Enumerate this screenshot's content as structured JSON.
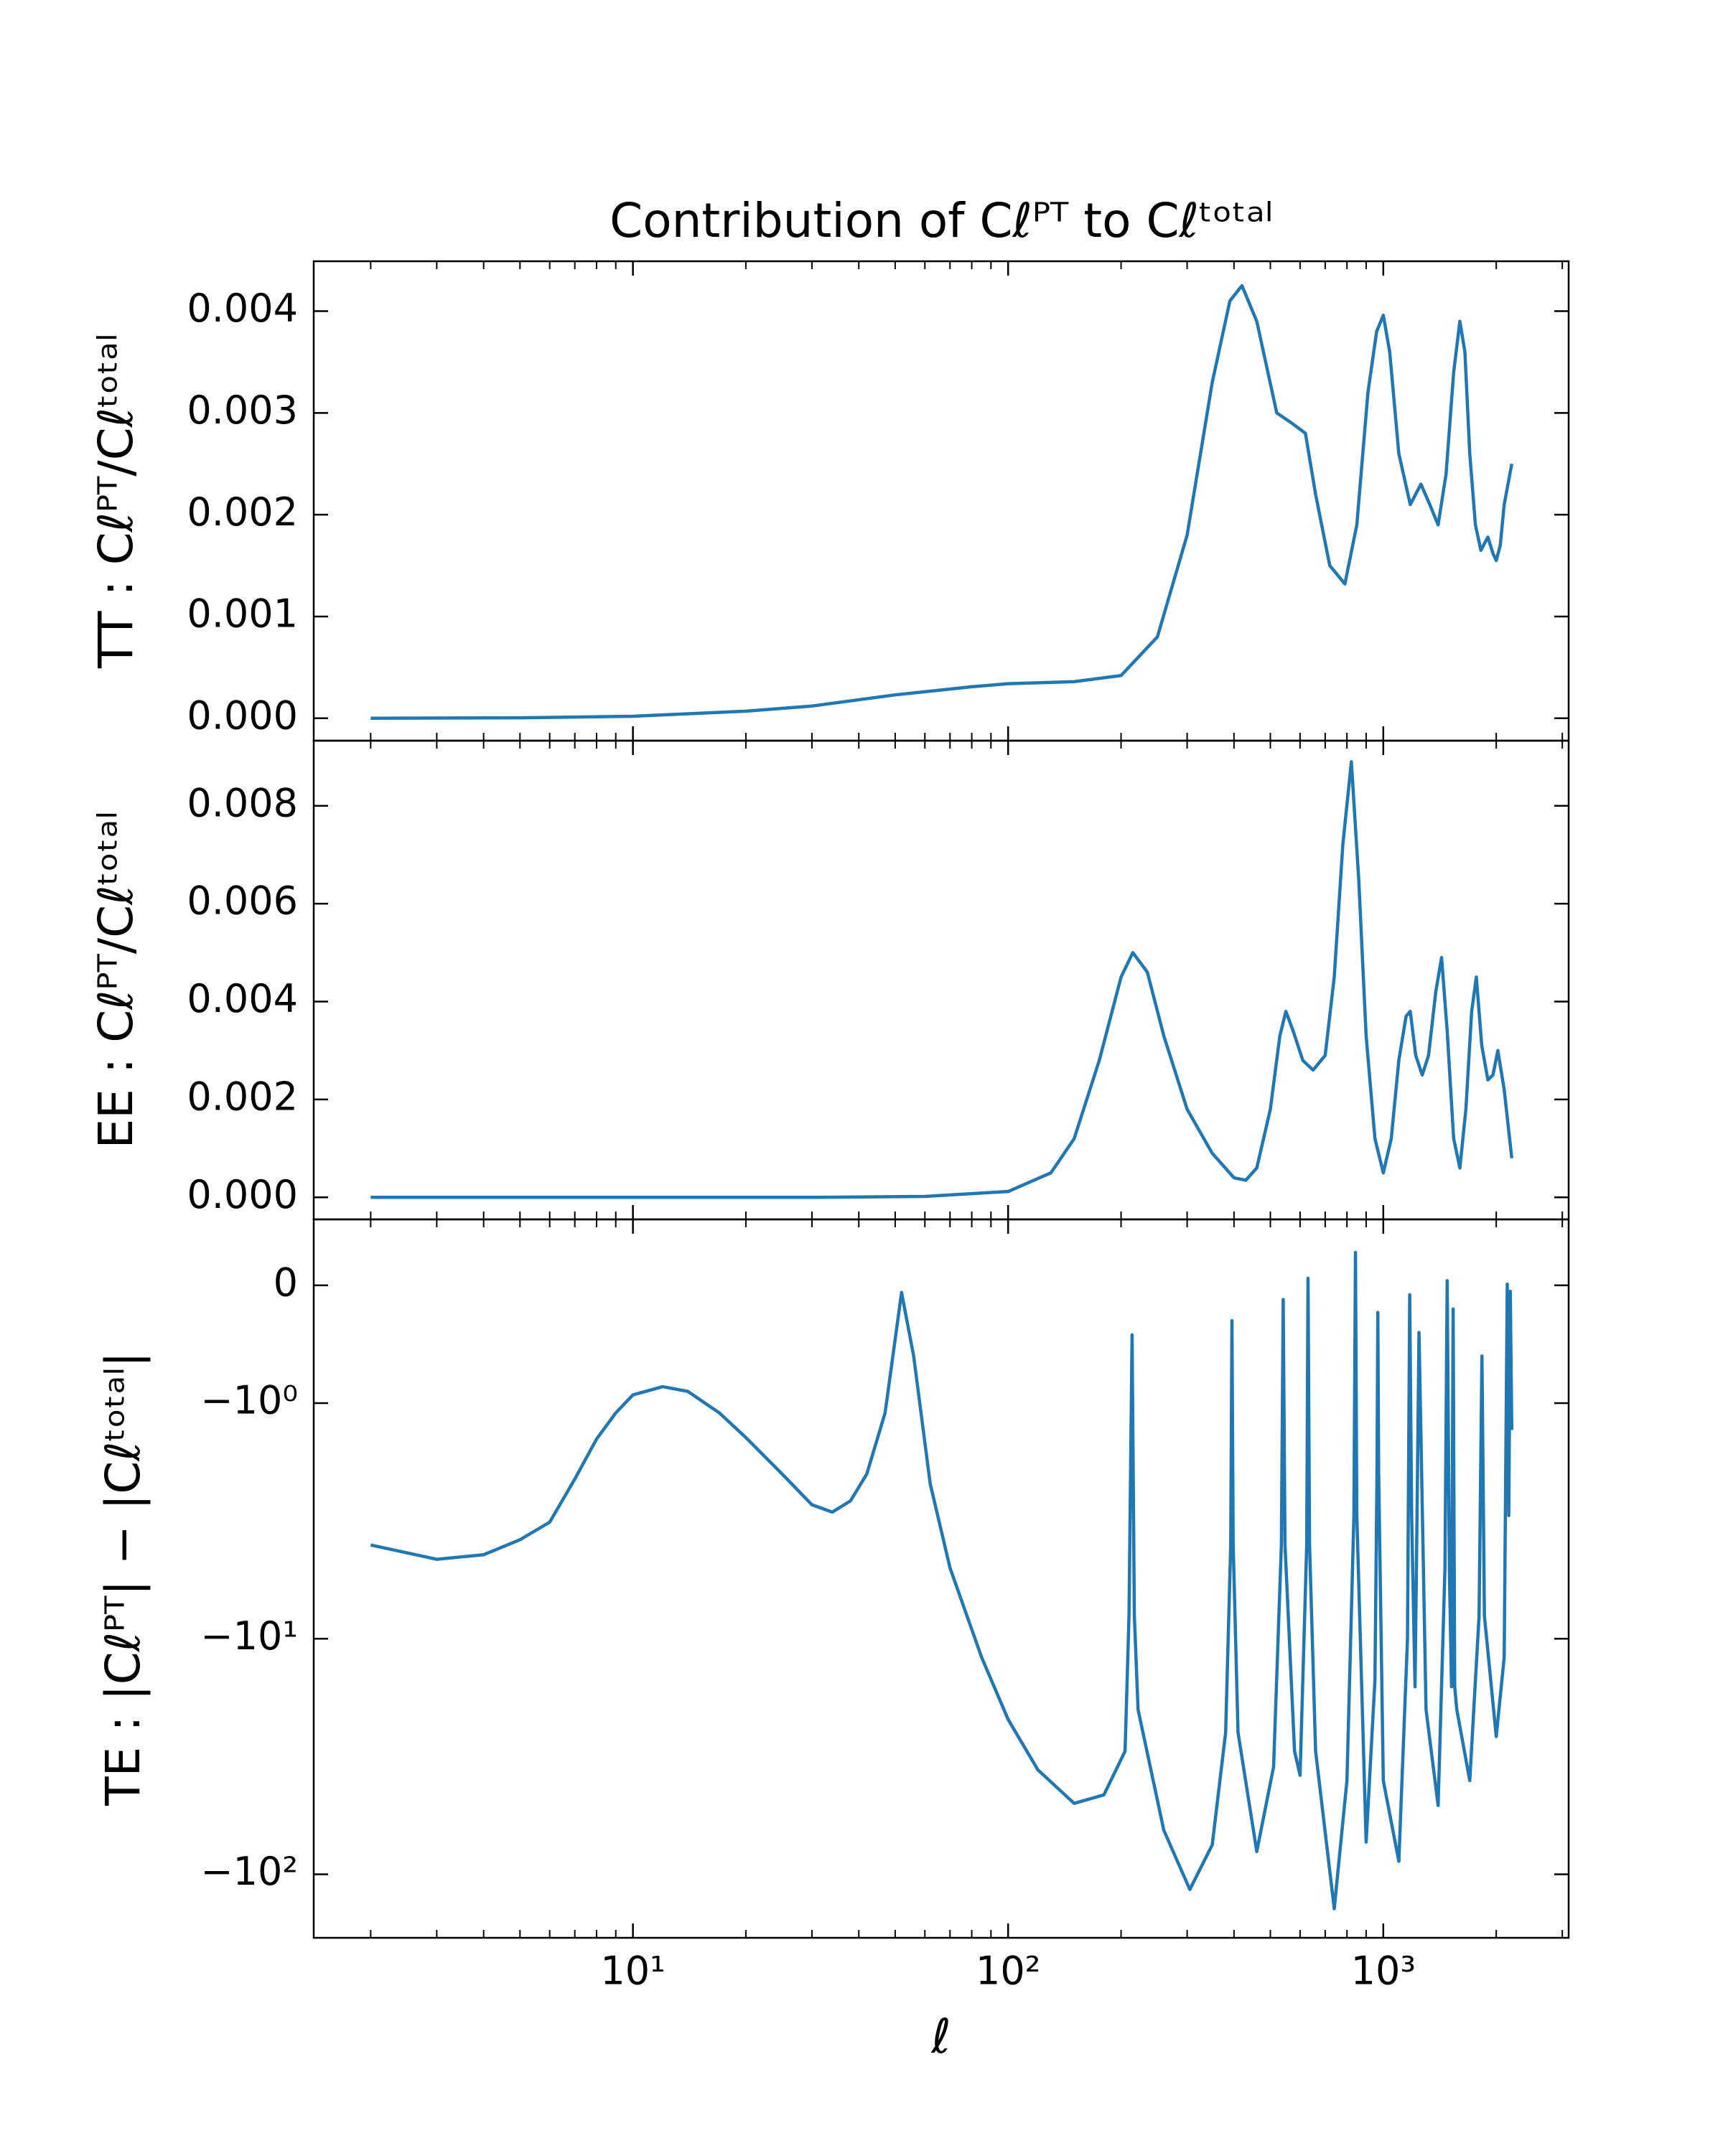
{
  "chart_data": [
    {
      "type": "line",
      "title": "Contribution of Cℓᴾᵀ to Cℓᵗᵒᵗᵃˡ",
      "ylabel": "TT : Cℓᴾᵀ/Cℓᵗᵒᵗᵃˡ",
      "xscale": "log",
      "xlim": [
        1.41,
        3119
      ],
      "xticks": [
        10,
        100,
        1000
      ],
      "ylim": [
        -0.00022,
        0.00449
      ],
      "yticks": [
        {
          "value": 0,
          "label": "0.000"
        },
        {
          "value": 0.001,
          "label": "0.001"
        },
        {
          "value": 0.002,
          "label": "0.002"
        },
        {
          "value": 0.003,
          "label": "0.003"
        },
        {
          "value": 0.004,
          "label": "0.004"
        }
      ],
      "color": "#1f77b4",
      "x": [
        2,
        5,
        10,
        20,
        30,
        50,
        80,
        100,
        150,
        200,
        250,
        300,
        350,
        390,
        420,
        460,
        520,
        570,
        620,
        660,
        720,
        790,
        850,
        910,
        960,
        1000,
        1040,
        1100,
        1180,
        1260,
        1330,
        1400,
        1470,
        1540,
        1600,
        1650,
        1700,
        1760,
        1820,
        1900,
        1960,
        2000,
        2050,
        2100,
        2200
      ],
      "values": [
        0.0,
        5e-06,
        2e-05,
        7e-05,
        0.00012,
        0.00023,
        0.00031,
        0.00034,
        0.00036,
        0.00042,
        0.0008,
        0.0018,
        0.0033,
        0.0041,
        0.00425,
        0.0039,
        0.003,
        0.0029,
        0.0028,
        0.0022,
        0.0015,
        0.00132,
        0.0019,
        0.0032,
        0.0038,
        0.00396,
        0.0036,
        0.0026,
        0.0021,
        0.0023,
        0.0021,
        0.0019,
        0.0024,
        0.0034,
        0.0039,
        0.0036,
        0.0026,
        0.0019,
        0.00165,
        0.00178,
        0.00162,
        0.00155,
        0.0017,
        0.0021,
        0.0025
      ]
    },
    {
      "type": "line",
      "ylabel": "EE : Cℓᴾᵀ/Cℓᵗᵒᵗᵃˡ",
      "xscale": "log",
      "xlim": [
        1.41,
        3119
      ],
      "xticks": [
        10,
        100,
        1000
      ],
      "ylim": [
        -0.00045,
        0.00933
      ],
      "yticks": [
        {
          "value": 0,
          "label": "0.000"
        },
        {
          "value": 0.002,
          "label": "0.002"
        },
        {
          "value": 0.004,
          "label": "0.004"
        },
        {
          "value": 0.006,
          "label": "0.006"
        },
        {
          "value": 0.008,
          "label": "0.008"
        }
      ],
      "color": "#1f77b4",
      "x": [
        2,
        10,
        30,
        60,
        100,
        130,
        150,
        175,
        200,
        215,
        235,
        260,
        300,
        350,
        400,
        430,
        460,
        500,
        530,
        550,
        575,
        610,
        650,
        700,
        740,
        780,
        822,
        860,
        900,
        950,
        1000,
        1050,
        1100,
        1150,
        1180,
        1220,
        1270,
        1320,
        1380,
        1430,
        1480,
        1540,
        1600,
        1660,
        1720,
        1770,
        1830,
        1900,
        1960,
        2020,
        2100,
        2200
      ],
      "values": [
        0.0,
        0.0,
        0.0,
        2e-05,
        0.00012,
        0.0005,
        0.0012,
        0.0028,
        0.0045,
        0.005,
        0.0046,
        0.0033,
        0.0018,
        0.0009,
        0.0004,
        0.00035,
        0.0006,
        0.0018,
        0.0033,
        0.0038,
        0.0034,
        0.0028,
        0.0026,
        0.0029,
        0.0045,
        0.0072,
        0.0089,
        0.0065,
        0.0033,
        0.0012,
        0.0005,
        0.0012,
        0.0028,
        0.0037,
        0.0038,
        0.0029,
        0.0025,
        0.0029,
        0.0042,
        0.0049,
        0.0034,
        0.0012,
        0.0006,
        0.0018,
        0.0038,
        0.0045,
        0.0031,
        0.0024,
        0.0025,
        0.003,
        0.0022,
        0.0008
      ]
    },
    {
      "type": "line",
      "ylabel": "TE : |Cℓᴾᵀ| − |Cℓᵗᵒᵗᵃˡ|",
      "xlabel": "ℓ",
      "xscale": "log",
      "xlim": [
        1.41,
        3119
      ],
      "xticks": [
        {
          "value": 10,
          "label": "10¹"
        },
        {
          "value": 100,
          "label": "10²"
        },
        {
          "value": 1000,
          "label": "10³"
        }
      ],
      "yscale": "symlog",
      "linthresh": 1,
      "linscale": 0.5,
      "ylim": [
        -186,
        0.56
      ],
      "yticks": [
        0,
        {
          "value": -1,
          "label": "−10⁰"
        },
        {
          "value": -10,
          "label": "−10¹"
        },
        {
          "value": -100,
          "label": "−10²"
        }
      ],
      "color": "#1f77b4",
      "x": [
        2,
        3,
        4,
        5,
        6,
        7,
        8,
        9,
        10,
        12,
        14,
        17,
        20,
        25,
        30,
        34,
        38,
        42,
        47,
        52,
        56,
        62,
        70,
        85,
        100,
        120,
        150,
        180,
        205,
        210,
        214,
        217,
        222,
        260,
        305,
        350,
        380,
        392,
        395,
        398,
        410,
        460,
        510,
        535,
        541,
        547,
        580,
        600,
        625,
        630,
        636,
        660,
        740,
        800,
        835,
        843,
        850,
        900,
        950,
        962,
        967,
        972,
        1000,
        1100,
        1160,
        1176,
        1190,
        1215,
        1230,
        1245,
        1300,
        1400,
        1460,
        1480,
        1500,
        1520,
        1535,
        1550,
        1570,
        1700,
        1800,
        1832,
        1860,
        2000,
        2100,
        2140,
        2160,
        2180,
        2200
      ],
      "values": [
        -4.0,
        -4.6,
        -4.4,
        -3.8,
        -3.2,
        -2.1,
        -1.42,
        -1.1,
        -0.93,
        -0.86,
        -0.9,
        -1.1,
        -1.4,
        -2.0,
        -2.7,
        -2.9,
        -2.6,
        -2.0,
        -1.1,
        -0.06,
        -0.6,
        -2.2,
        -5,
        -12,
        -22,
        -36,
        -50,
        -46,
        -30,
        -8,
        -0.42,
        -8,
        -20,
        -65,
        -116,
        -75,
        -25,
        -4,
        -0.3,
        -4,
        -25,
        -80,
        -35,
        -4,
        -0.12,
        -4,
        -30,
        -38,
        -4,
        0.06,
        -4,
        -30,
        -140,
        -40,
        -3,
        0.28,
        -3,
        -73,
        -15,
        -2,
        -0.23,
        -2,
        -40,
        -88,
        -10,
        -0.08,
        -3,
        -16,
        -3,
        -0.4,
        -20,
        -51,
        -5,
        0.04,
        -5,
        -16,
        -0.2,
        -16,
        -20,
        -40,
        -8,
        -0.6,
        -8,
        -26,
        -12,
        0.01,
        -3,
        -0.05,
        -1.3
      ]
    }
  ]
}
